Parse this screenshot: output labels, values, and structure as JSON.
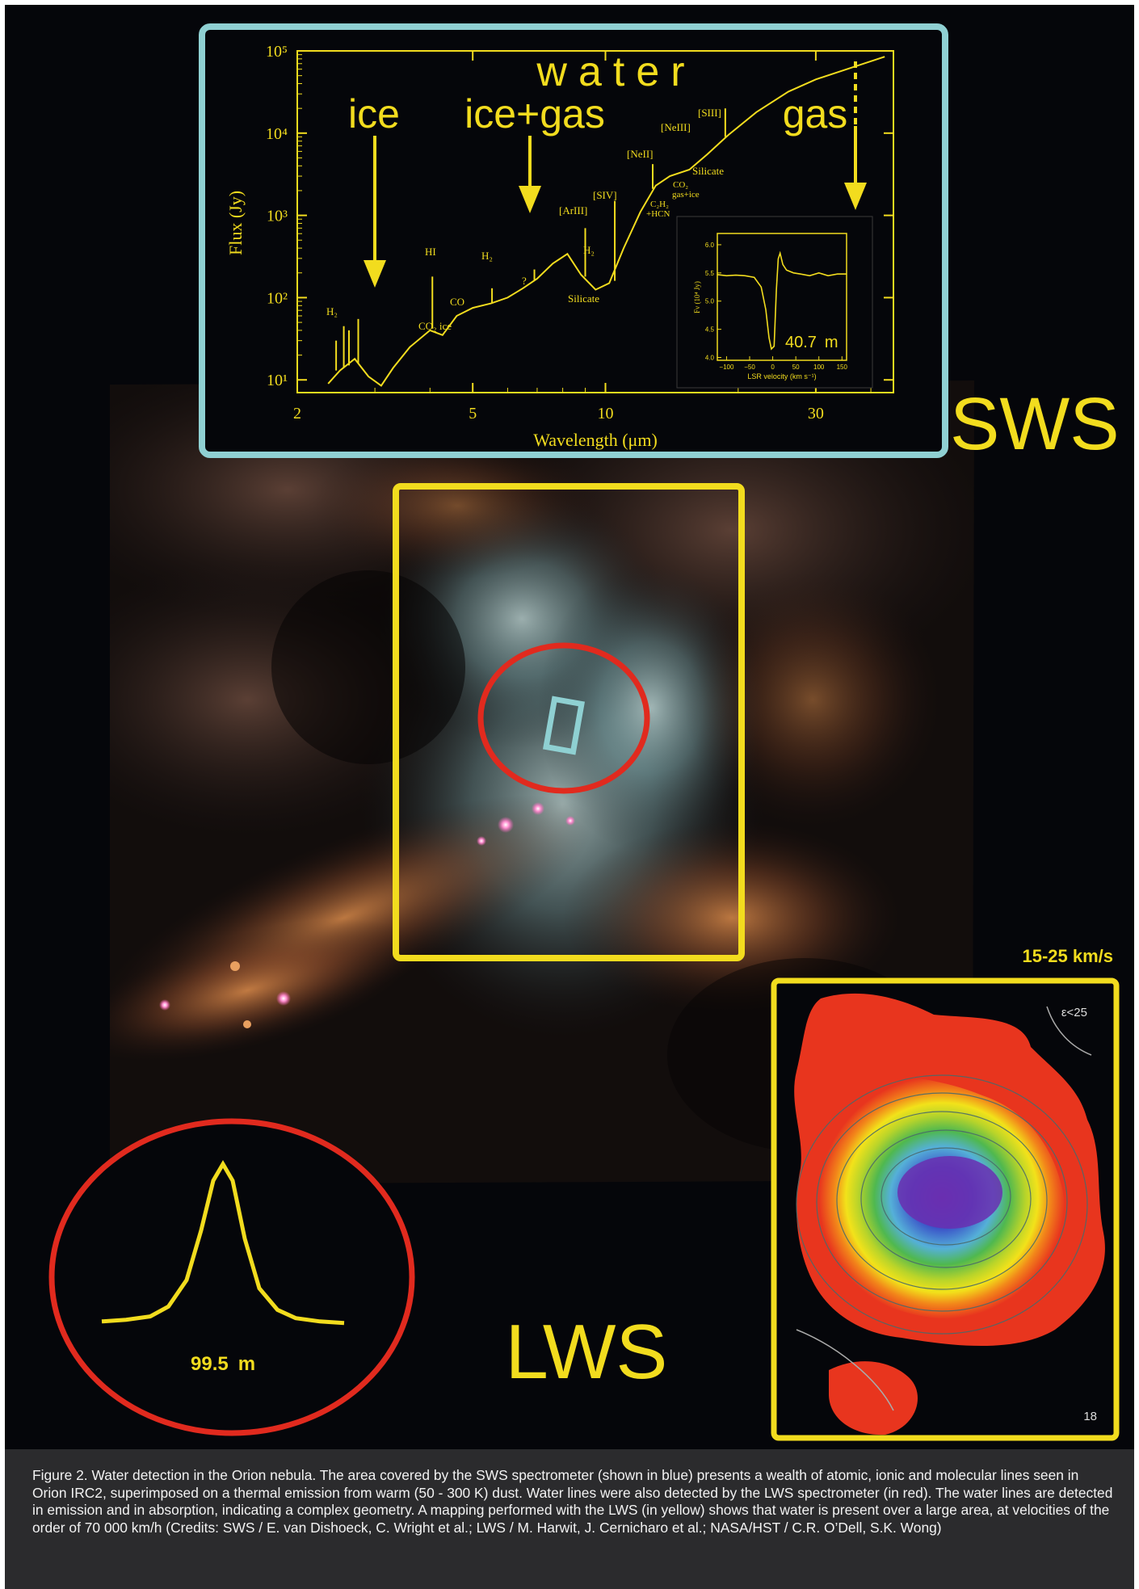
{
  "figure": {
    "sws_label": "SWS",
    "lws_label": "LWS",
    "velocity_label": "15-25 km/s",
    "map_corner_top": "ε<25",
    "map_corner_bottom": "18"
  },
  "spectrum_chart": {
    "type": "line",
    "ylabel": "Flux (Jy)",
    "xlabel": "Wavelength (μm)",
    "x_scale": "log",
    "y_scale": "log",
    "xlim": [
      2,
      45
    ],
    "ylim": [
      7,
      100000
    ],
    "x_ticks": [
      "2",
      "5",
      "10",
      "30"
    ],
    "y_ticks": [
      "10¹",
      "10²",
      "10³",
      "10⁴",
      "10⁵"
    ],
    "series_points": [
      [
        2.35,
        9
      ],
      [
        2.5,
        13
      ],
      [
        2.7,
        18
      ],
      [
        2.9,
        11
      ],
      [
        3.1,
        8.5
      ],
      [
        3.3,
        14
      ],
      [
        3.6,
        25
      ],
      [
        4.0,
        40
      ],
      [
        4.27,
        35
      ],
      [
        4.6,
        60
      ],
      [
        5.0,
        75
      ],
      [
        5.5,
        85
      ],
      [
        6.0,
        100
      ],
      [
        6.5,
        130
      ],
      [
        7.0,
        170
      ],
      [
        7.6,
        260
      ],
      [
        8.2,
        340
      ],
      [
        8.8,
        190
      ],
      [
        9.5,
        125
      ],
      [
        10.2,
        150
      ],
      [
        11.0,
        400
      ],
      [
        12.0,
        1100
      ],
      [
        13.0,
        2300
      ],
      [
        14.0,
        3000
      ],
      [
        15.5,
        3600
      ],
      [
        17.0,
        5500
      ],
      [
        19.0,
        9500
      ],
      [
        22.0,
        18000
      ],
      [
        26.0,
        32000
      ],
      [
        30.0,
        45000
      ],
      [
        36.0,
        62000
      ],
      [
        43.0,
        85000
      ]
    ],
    "annotations": {
      "water": "water",
      "ice": "ice",
      "ice_gas": "ice+gas",
      "gas": "gas",
      "h2_left": "H₂",
      "hi": "HI",
      "co": "CO",
      "co2_ice": "CO₂ ice",
      "h2_mid": "H₂",
      "question": "?",
      "ariii": "[ArIII]",
      "siv": "[SIV]",
      "h2_right": "H₂",
      "silicate_low": "Silicate",
      "neii": "[NeII]",
      "c2h2": "C₂H₂",
      "hcn": "+HCN",
      "co2_gas": "CO₂",
      "gas_ice": "gas+ice",
      "neiii": "[NeIII]",
      "siii": "[SIII]",
      "silicate_high": "Silicate"
    }
  },
  "inset_chart": {
    "type": "line",
    "xlabel": "LSR velocity (km s⁻¹)",
    "ylabel": "Fν (10⁴ Jy)",
    "xlim": [
      -120,
      160
    ],
    "ylim": [
      3.95,
      6.2
    ],
    "x_ticks": [
      "−100",
      "−50",
      "0",
      "50",
      "100",
      "150"
    ],
    "y_ticks": [
      "4.0",
      "4.5",
      "5.0",
      "5.5",
      "6.0"
    ],
    "line_label": "40.7 m",
    "series_points": [
      [
        -120,
        5.47
      ],
      [
        -100,
        5.45
      ],
      [
        -80,
        5.46
      ],
      [
        -60,
        5.45
      ],
      [
        -40,
        5.42
      ],
      [
        -25,
        5.25
      ],
      [
        -15,
        4.85
      ],
      [
        -8,
        4.35
      ],
      [
        -3,
        4.15
      ],
      [
        3,
        4.2
      ],
      [
        8,
        5.2
      ],
      [
        12,
        5.75
      ],
      [
        16,
        5.85
      ],
      [
        22,
        5.65
      ],
      [
        30,
        5.55
      ],
      [
        45,
        5.5
      ],
      [
        60,
        5.48
      ],
      [
        80,
        5.45
      ],
      [
        100,
        5.5
      ],
      [
        120,
        5.45
      ],
      [
        140,
        5.48
      ],
      [
        160,
        5.48
      ]
    ]
  },
  "lws_line_chart": {
    "type": "line",
    "line_label": "99.5 m",
    "series_points": [
      [
        -1.0,
        0.05
      ],
      [
        -0.8,
        0.06
      ],
      [
        -0.6,
        0.08
      ],
      [
        -0.45,
        0.14
      ],
      [
        -0.3,
        0.3
      ],
      [
        -0.18,
        0.6
      ],
      [
        -0.08,
        0.9
      ],
      [
        0,
        1.0
      ],
      [
        0.08,
        0.9
      ],
      [
        0.18,
        0.55
      ],
      [
        0.3,
        0.25
      ],
      [
        0.45,
        0.12
      ],
      [
        0.6,
        0.07
      ],
      [
        0.8,
        0.05
      ],
      [
        1.0,
        0.04
      ]
    ]
  },
  "caption": {
    "text": "Figure 2. Water detection in the Orion nebula. The area covered by the SWS spectrometer (shown in blue) presents a wealth of atomic, ionic and molecular lines seen in Orion IRC2, superimposed on a thermal emission from warm (50 - 300 K) dust. Water lines were also detected by the LWS spectrometer (in red). The water lines are detected in emission and in absorption, indicating a complex geometry. A mapping performed with the LWS (in yellow) shows that water is present over a large area, at velocities of the order of 70 000 km/h (Credits: SWS / E. van Dishoeck, C. Wright et al.; LWS / M. Harwit, J. Cernicharo et al.; NASA/HST / C.R. O’Dell, S.K. Wong)"
  },
  "colors": {
    "yellow": "#f2dc1e",
    "cyan_frame": "#8fd0d2",
    "red_circle": "#e12a1e"
  }
}
